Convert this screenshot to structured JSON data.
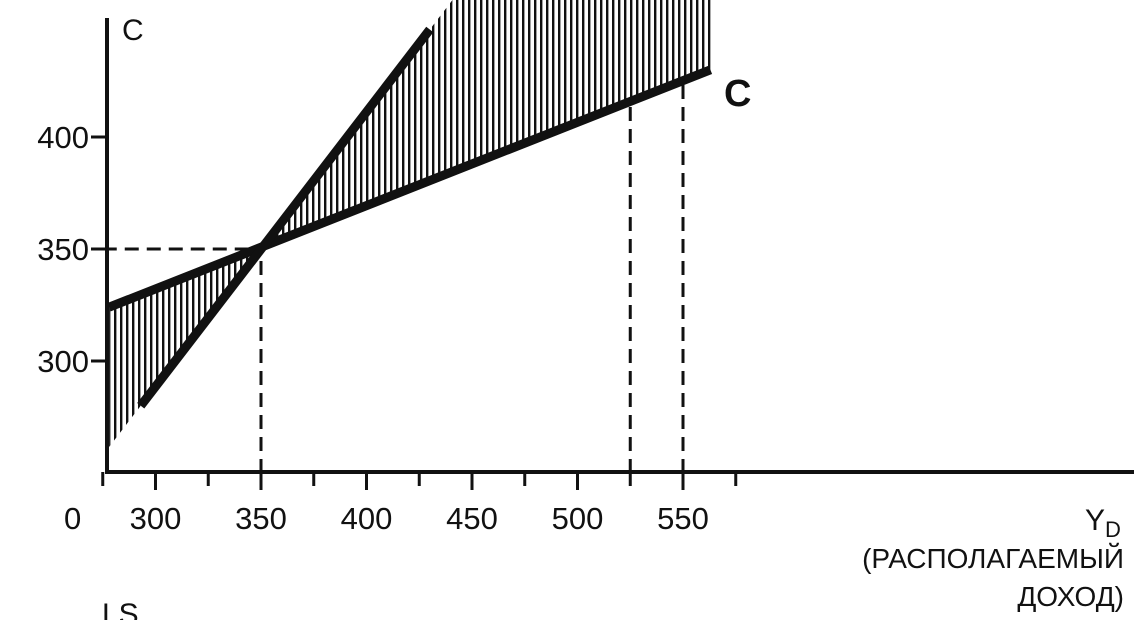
{
  "chart_data": {
    "type": "line",
    "title": "",
    "ylabel": "C",
    "xlabel": {
      "symbol": "Y",
      "subscript": "D",
      "line1": "(РАСПОЛАГАЕМЫЙ",
      "line2": "ДОХОД)"
    },
    "origin_label": "0",
    "x_ticks": [
      300,
      350,
      400,
      450,
      500,
      550
    ],
    "x_tick_labels": [
      "300",
      "350",
      "400",
      "450",
      "500",
      "550"
    ],
    "y_ticks": [
      300,
      350,
      400
    ],
    "y_tick_labels": [
      "300",
      "350",
      "400"
    ],
    "xlim": [
      275,
      575
    ],
    "ylim": [
      250,
      450
    ],
    "series": [
      {
        "name": "C",
        "x": [
          278,
          563
        ],
        "y": [
          324,
          430
        ]
      },
      {
        "x": [
          293,
          430
        ],
        "y": [
          280,
          448
        ]
      }
    ],
    "reference_lines": [
      {
        "type": "h",
        "value": 350,
        "x_from": 275,
        "x_to": 350
      },
      {
        "type": "v",
        "value": 350,
        "y_from": 250,
        "y_to": 350
      },
      {
        "type": "v",
        "value": 525,
        "y_from": 250,
        "y_to": 416
      },
      {
        "type": "v",
        "value": 550,
        "y_from": 250,
        "y_to": 426
      }
    ],
    "shaded_regions": [
      {
        "between_series": [
          0,
          1
        ],
        "x_range": [
          278,
          350
        ]
      },
      {
        "between_series": [
          0,
          1
        ],
        "x_range": [
          350,
          563
        ]
      }
    ],
    "partial_label_below": "LS",
    "grid": false
  }
}
